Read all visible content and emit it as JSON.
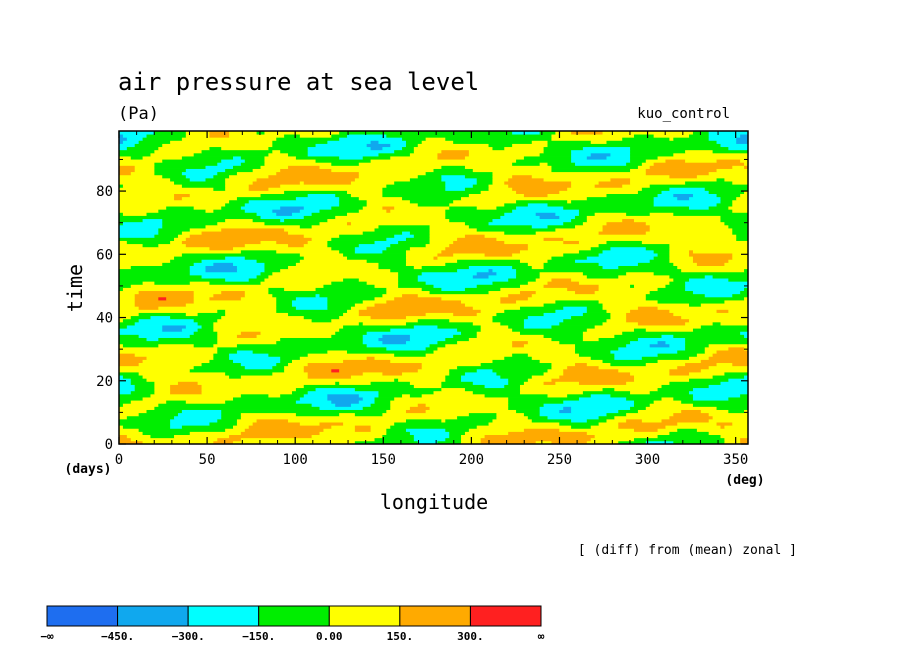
{
  "chart_data": {
    "type": "heatmap",
    "title": "air pressure at sea level",
    "units": "(Pa)",
    "run_label": "kuo_control",
    "xlabel": "longitude",
    "x_units": "(deg)",
    "ylabel": "time",
    "y_units": "(days)",
    "xlim": [
      0,
      357
    ],
    "ylim": [
      0,
      99
    ],
    "x_ticks": [
      0,
      50,
      100,
      150,
      200,
      250,
      300,
      350
    ],
    "y_ticks": [
      0,
      20,
      40,
      60,
      80
    ],
    "annotation": "[ (diff) from (mean) zonal ]",
    "colorbar": {
      "boundaries": [
        "−∞",
        "−450.",
        "−300.",
        "−150.",
        "0.00",
        "150.",
        "300.",
        "∞"
      ],
      "colors": [
        "#1e6ef0",
        "#10a8ee",
        "#00ffff",
        "#00ee00",
        "#ffff00",
        "#ffaa00",
        "#ff2020"
      ]
    }
  }
}
